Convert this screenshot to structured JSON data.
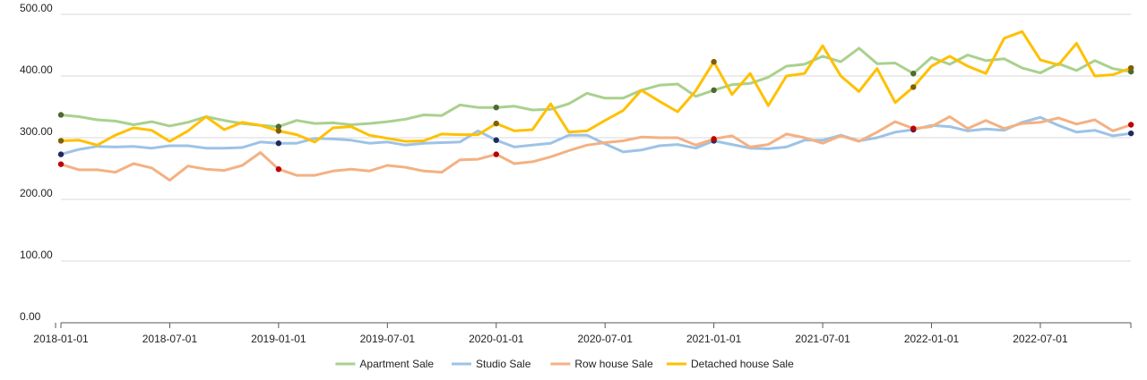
{
  "chart_data": {
    "type": "line",
    "title": "",
    "xlabel": "",
    "ylabel": "",
    "ylim": [
      0,
      500
    ],
    "y_ticks": [
      "0.00",
      "100.00",
      "200.00",
      "300.00",
      "400.00",
      "500.00"
    ],
    "x_ticks": [
      "2018-01-01",
      "2018-07-01",
      "2019-01-01",
      "2019-07-01",
      "2020-01-01",
      "2020-07-01",
      "2021-01-01",
      "2021-07-01",
      "2022-01-01",
      "2022-07-01"
    ],
    "x_start": "2018-01",
    "grid": "horizontal",
    "legend_position": "bottom",
    "highlight_months": [
      "2018-01",
      "2019-01",
      "2020-01",
      "2021-01",
      "2021-12",
      "2022-12"
    ],
    "series": [
      {
        "name": "Apartment Sale",
        "color": "#a9d18e",
        "marker_color": "#4e6a2e",
        "values": [
          337,
          334,
          329,
          327,
          321,
          326,
          319,
          325,
          334,
          328,
          323,
          320,
          318,
          328,
          323,
          324,
          321,
          323,
          326,
          330,
          337,
          336,
          353,
          349,
          349,
          351,
          345,
          346,
          355,
          372,
          364,
          364,
          377,
          385,
          387,
          367,
          377,
          386,
          388,
          398,
          416,
          419,
          432,
          423,
          445,
          420,
          421,
          404,
          430,
          419,
          434,
          425,
          428,
          413,
          405,
          420,
          409,
          425,
          412,
          407
        ]
      },
      {
        "name": "Studio Sale",
        "color": "#9dc3e6",
        "marker_color": "#1f2b5e",
        "values": [
          273,
          281,
          286,
          285,
          286,
          283,
          287,
          287,
          283,
          283,
          284,
          293,
          291,
          291,
          299,
          298,
          296,
          291,
          293,
          288,
          291,
          292,
          293,
          311,
          296,
          285,
          288,
          291,
          304,
          304,
          290,
          277,
          280,
          287,
          289,
          283,
          295,
          289,
          283,
          282,
          285,
          296,
          296,
          304,
          295,
          300,
          309,
          313,
          320,
          318,
          311,
          314,
          312,
          325,
          333,
          320,
          309,
          312,
          303,
          307
        ]
      },
      {
        "name": "Row house Sale",
        "color": "#f4b183",
        "marker_color": "#c00000",
        "values": [
          257,
          248,
          248,
          244,
          258,
          251,
          231,
          254,
          249,
          247,
          255,
          276,
          249,
          239,
          239,
          246,
          249,
          246,
          255,
          252,
          246,
          244,
          264,
          265,
          273,
          258,
          261,
          269,
          279,
          288,
          292,
          295,
          301,
          300,
          300,
          288,
          298,
          303,
          285,
          289,
          306,
          300,
          291,
          303,
          294,
          309,
          326,
          315,
          318,
          334,
          315,
          328,
          315,
          323,
          325,
          332,
          322,
          329,
          311,
          321
        ]
      },
      {
        "name": "Detached house Sale",
        "color": "#ffc000",
        "marker_color": "#7f6000",
        "values": [
          295,
          296,
          288,
          304,
          316,
          312,
          294,
          311,
          334,
          313,
          325,
          320,
          311,
          305,
          293,
          316,
          318,
          304,
          299,
          294,
          295,
          306,
          305,
          305,
          323,
          311,
          313,
          355,
          309,
          311,
          328,
          344,
          377,
          359,
          342,
          376,
          423,
          370,
          404,
          352,
          400,
          404,
          449,
          400,
          375,
          412,
          357,
          382,
          416,
          432,
          416,
          404,
          461,
          472,
          426,
          418,
          453,
          400,
          402,
          413
        ]
      }
    ]
  }
}
